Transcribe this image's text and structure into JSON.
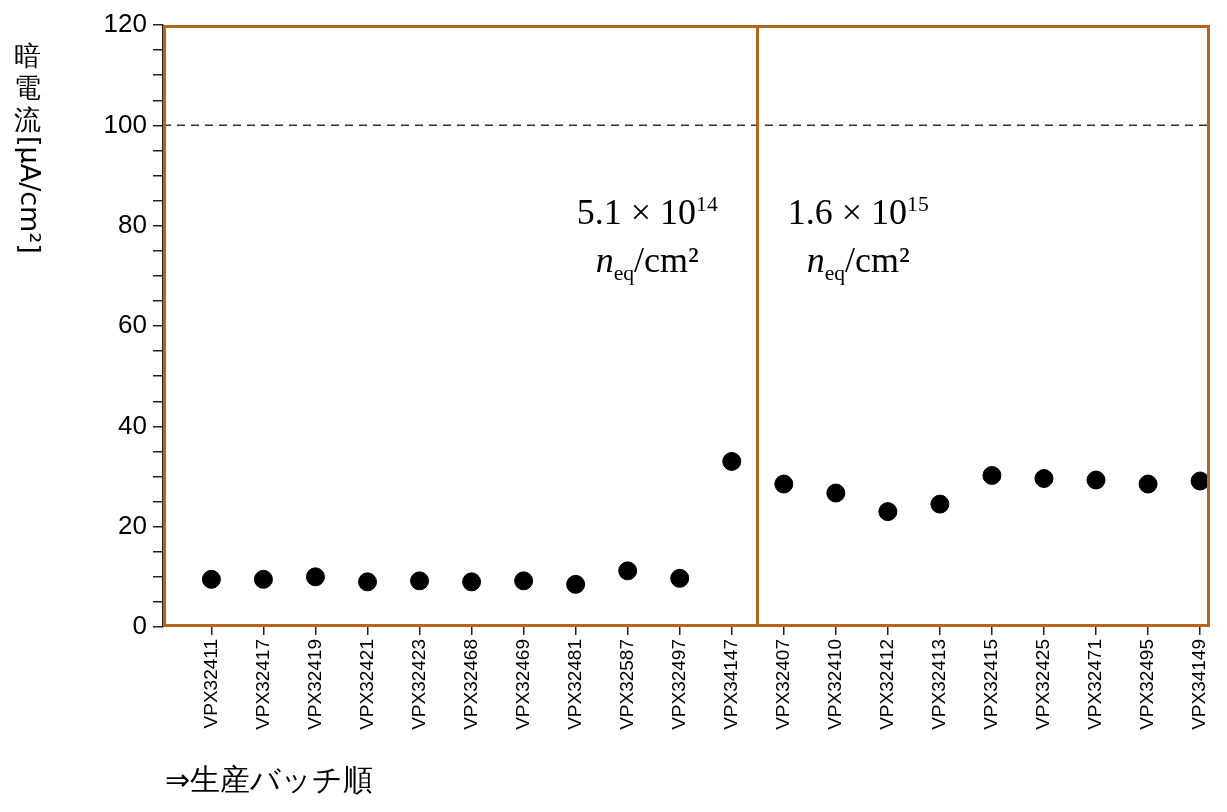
{
  "chart_data": {
    "type": "scatter",
    "xlabel": "⇒生産バッチ順",
    "ylabel": "暗電流[μA/cm²]",
    "categories": [
      "VPX32411",
      "VPX32417",
      "VPX32419",
      "VPX32421",
      "VPX32423",
      "VPX32468",
      "VPX32469",
      "VPX32481",
      "VPX32587",
      "VPX32497",
      "VPX34147",
      "VPX32407",
      "VPX32410",
      "VPX32412",
      "VPX32413",
      "VPX32415",
      "VPX32425",
      "VPX32471",
      "VPX32495",
      "VPX34149"
    ],
    "series": [
      {
        "color": "#000000",
        "values": [
          9.5,
          9.5,
          10,
          9,
          9.2,
          9,
          9.2,
          8.5,
          11.2,
          9.7,
          33,
          28.5,
          26.7,
          23,
          24.5,
          30.2,
          29.6,
          29.3,
          28.5,
          29.1
        ]
      }
    ],
    "marker": "circle",
    "ylim": [
      0,
      120
    ],
    "yticks": [
      0,
      {
        "value": 5,
        "label": null
      },
      {
        "value": 10,
        "label": null
      },
      {
        "value": 15,
        "label": null
      },
      20,
      {
        "value": 25,
        "label": null
      },
      {
        "value": 30,
        "label": null
      },
      {
        "value": 35,
        "label": null
      },
      40,
      {
        "value": 45,
        "label": null
      },
      {
        "value": 50,
        "label": null
      },
      {
        "value": 55,
        "label": null
      },
      60,
      {
        "value": 65,
        "label": null
      },
      {
        "value": 70,
        "label": null
      },
      {
        "value": 75,
        "label": null
      },
      80,
      {
        "value": 85,
        "label": null
      },
      {
        "value": 90,
        "label": null
      },
      {
        "value": 95,
        "label": null
      },
      100,
      {
        "value": 105,
        "label": null
      },
      {
        "value": 110,
        "label": null
      },
      {
        "value": 115,
        "label": null
      },
      120
    ],
    "ref_lines": [
      {
        "axis": "y",
        "value": 100,
        "color": "#333333",
        "line_style": "dashed"
      }
    ],
    "annotations": [
      "5.1 × 10$^{14}$\nn$_{eq}$/cm²",
      "1.6 × 10$^{15}$\nn$_{eq}$/cm²"
    ]
  }
}
